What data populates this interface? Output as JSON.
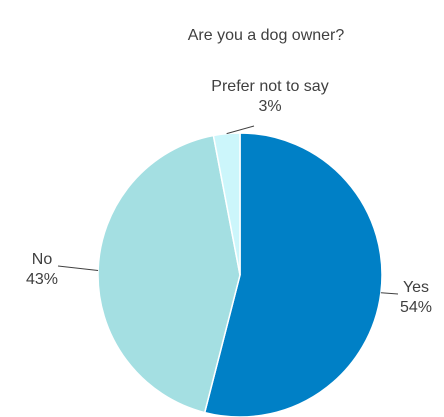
{
  "chart_data": {
    "type": "pie",
    "title": "Are you a dog owner?",
    "slices": [
      {
        "label": "Yes",
        "value": 54,
        "value_text": "54%",
        "color": "#0080c6"
      },
      {
        "label": "No",
        "value": 43,
        "value_text": "43%",
        "color": "#a4dfe2"
      },
      {
        "label": "Prefer not to say",
        "value": 3,
        "value_text": "3%",
        "color": "#ccf6fb"
      }
    ],
    "legend": "none"
  }
}
